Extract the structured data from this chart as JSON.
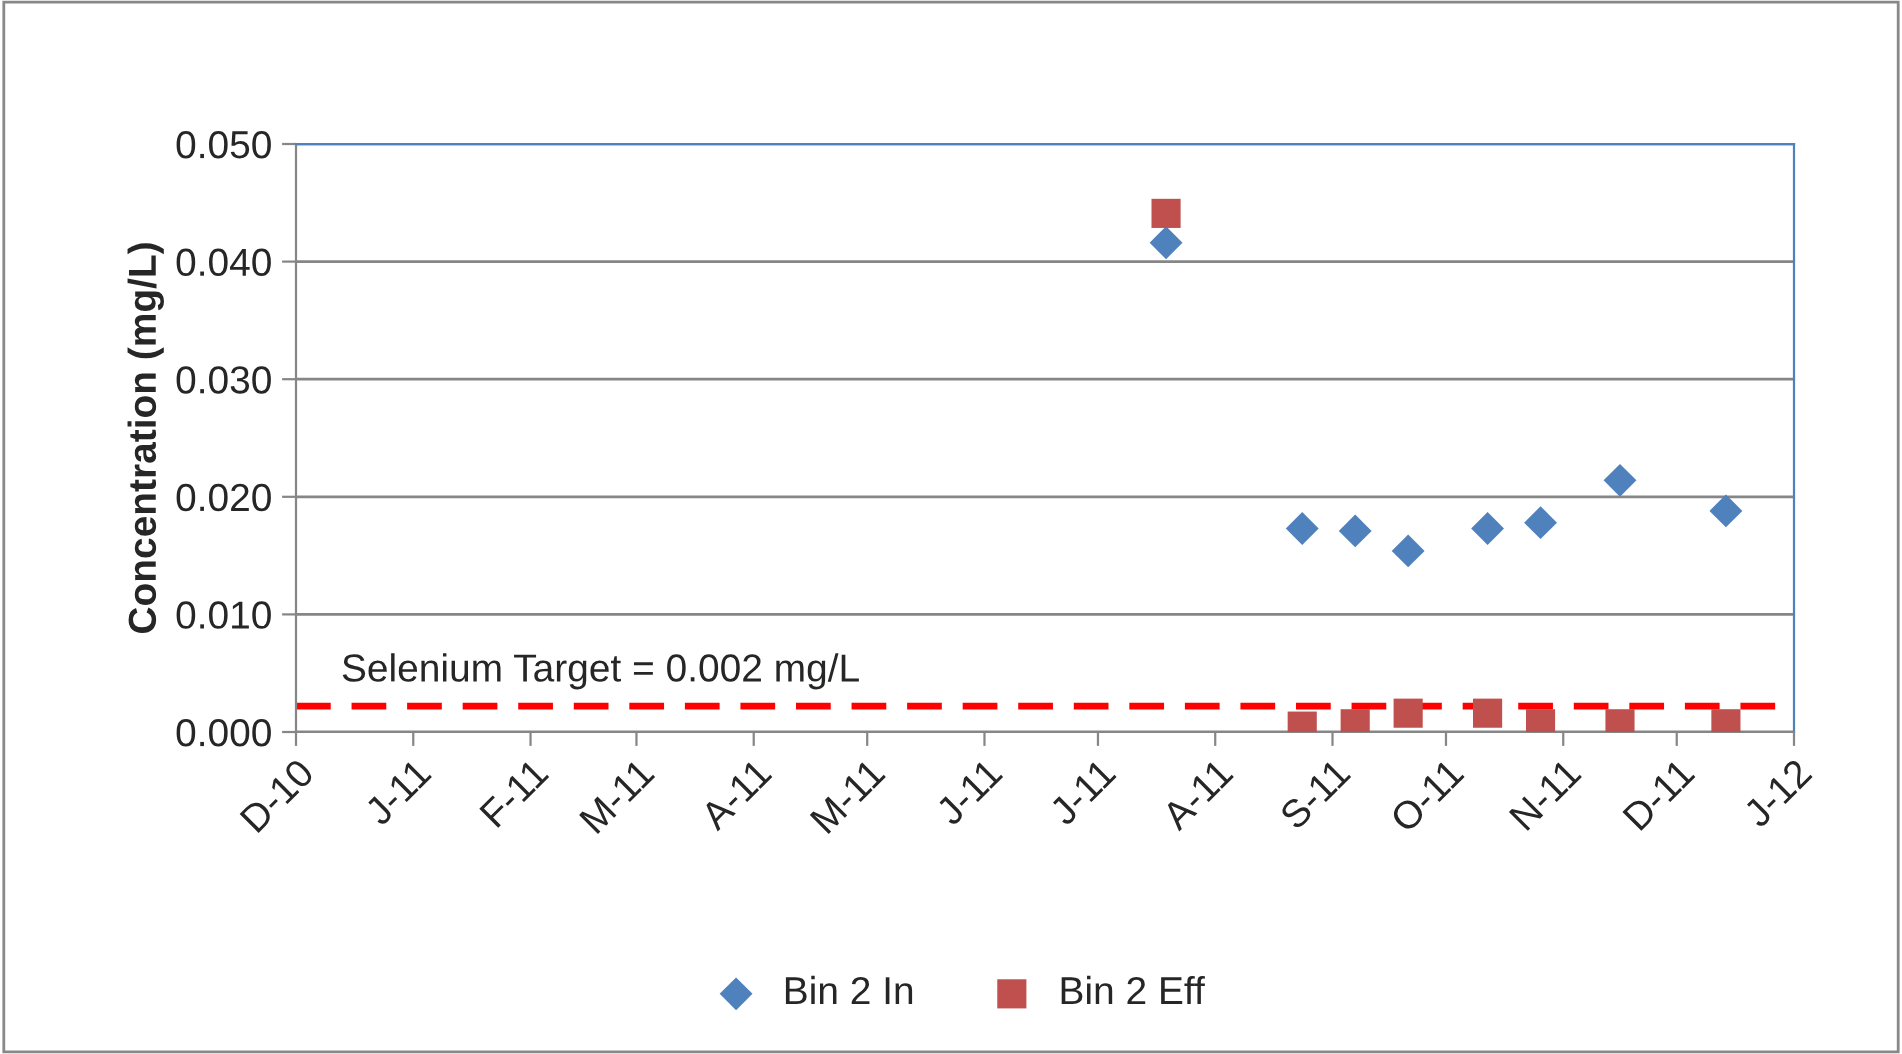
{
  "chart_data": {
    "type": "scatter",
    "ylabel": "Concentration (mg/L)",
    "x": [
      "2011-07-19",
      "2011-08-24",
      "2011-09-07",
      "2011-09-21",
      "2011-10-12",
      "2011-10-26",
      "2011-11-16",
      "2011-12-14"
    ],
    "series": [
      {
        "name": "Bin 2 In",
        "color": "#4f81bd",
        "marker": "diamond",
        "values": [
          0.0416,
          0.0173,
          0.0171,
          0.0154,
          0.0173,
          0.0178,
          0.0214,
          0.0188
        ]
      },
      {
        "name": "Bin 2 Eff",
        "color": "#c0504d",
        "marker": "square",
        "values": [
          0.0441,
          0.0005,
          0.0007,
          0.0016,
          0.0016,
          0.0007,
          0.0007,
          0.0007
        ]
      }
    ],
    "xlim": [
      "2010-12-01",
      "2012-01-01"
    ],
    "xticks": [
      {
        "value": "2010-12-01",
        "label": "D-10"
      },
      {
        "value": "2011-01-01",
        "label": "J-11"
      },
      {
        "value": "2011-02-01",
        "label": "F-11"
      },
      {
        "value": "2011-03-01",
        "label": "M-11"
      },
      {
        "value": "2011-04-01",
        "label": "A-11"
      },
      {
        "value": "2011-05-01",
        "label": "M-11"
      },
      {
        "value": "2011-06-01",
        "label": "J-11"
      },
      {
        "value": "2011-07-01",
        "label": "J-11"
      },
      {
        "value": "2011-08-01",
        "label": "A-11"
      },
      {
        "value": "2011-09-01",
        "label": "S-11"
      },
      {
        "value": "2011-10-01",
        "label": "O-11"
      },
      {
        "value": "2011-11-01",
        "label": "N-11"
      },
      {
        "value": "2011-12-01",
        "label": "D-11"
      },
      {
        "value": "2012-01-01",
        "label": "J-12"
      }
    ],
    "ylim": [
      0,
      0.05
    ],
    "yticks": [
      {
        "value": 0,
        "label": "0.000"
      },
      {
        "value": 0.01,
        "label": "0.010"
      },
      {
        "value": 0.02,
        "label": "0.020"
      },
      {
        "value": 0.03,
        "label": "0.030"
      },
      {
        "value": 0.04,
        "label": "0.040"
      },
      {
        "value": 0.05,
        "label": "0.050"
      }
    ],
    "ref_lines": [
      {
        "axis": "y",
        "value": 0.0022,
        "label": "Selenium Target = 0.002 mg/L",
        "color": "#ff0000",
        "line_style": "dashed"
      }
    ],
    "grid": "y",
    "legend": "bottom"
  }
}
